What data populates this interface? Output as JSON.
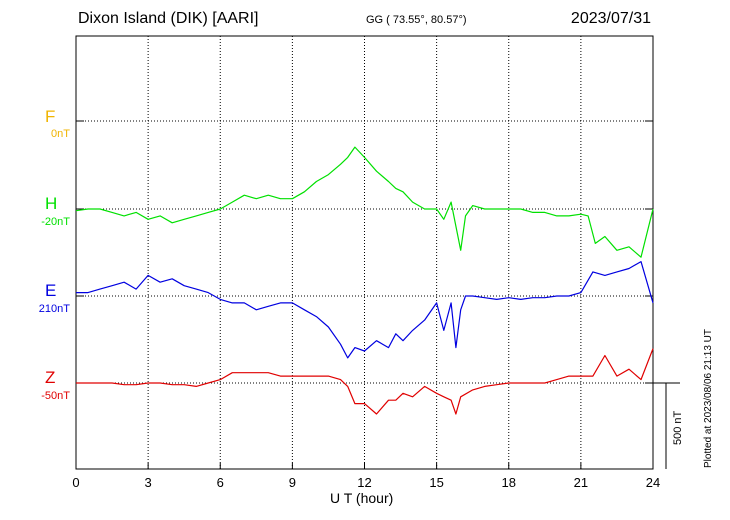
{
  "header": {
    "station": "Dixon Island (DIK)  [AARI]",
    "coords": "GG ( 73.55°,  80.57°)",
    "date": "2023/07/31"
  },
  "plotted_note": "Plotted at 2023/08/06 21:13 UT",
  "scale_label": "500 nT",
  "chart_data": {
    "type": "line",
    "xlabel": "U T (hour)",
    "x_ticks": [
      "0",
      "3",
      "6",
      "9",
      "12",
      "15",
      "18",
      "21",
      "24"
    ],
    "xlim": [
      0,
      24
    ],
    "grid": true,
    "units_per_grid_row": "nT",
    "series": [
      {
        "name": "F",
        "baseline": "0nT",
        "color": "#f0b400",
        "x": [],
        "y": []
      },
      {
        "name": "H",
        "baseline": "-20nT",
        "color": "#00e000",
        "x": [
          0,
          0.5,
          1,
          1.5,
          2,
          2.5,
          3,
          3.5,
          4,
          4.5,
          5,
          5.5,
          6,
          6.5,
          7,
          7.5,
          8,
          8.5,
          9,
          9.5,
          10,
          10.5,
          11,
          11.3,
          11.6,
          12,
          12.5,
          13,
          13.3,
          13.6,
          14,
          14.5,
          15,
          15.3,
          15.6,
          15.8,
          16,
          16.2,
          16.5,
          17,
          17.5,
          18,
          18.5,
          19,
          19.5,
          20,
          20.5,
          21,
          21.3,
          21.6,
          22,
          22.5,
          23,
          23.5,
          24
        ],
        "y": [
          -10,
          0,
          0,
          -20,
          -40,
          -20,
          -60,
          -40,
          -80,
          -60,
          -40,
          -20,
          0,
          40,
          80,
          60,
          80,
          60,
          60,
          100,
          160,
          200,
          260,
          300,
          360,
          300,
          220,
          160,
          120,
          100,
          40,
          0,
          0,
          -60,
          40,
          -100,
          -240,
          -40,
          20,
          0,
          0,
          0,
          0,
          -20,
          -20,
          -40,
          -40,
          -30,
          -40,
          -200,
          -160,
          -240,
          -220,
          -280,
          0
        ]
      },
      {
        "name": "E",
        "baseline": "210nT",
        "color": "#0000e0",
        "x": [
          0,
          0.5,
          1,
          1.5,
          2,
          2.5,
          3,
          3.5,
          4,
          4.5,
          5,
          5.5,
          6,
          6.5,
          7,
          7.5,
          8,
          8.5,
          9,
          9.5,
          10,
          10.5,
          11,
          11.3,
          11.6,
          12,
          12.5,
          13,
          13.3,
          13.6,
          14,
          14.5,
          15,
          15.3,
          15.6,
          15.8,
          16,
          16.2,
          16.5,
          17,
          17.5,
          18,
          18.5,
          19,
          19.5,
          20,
          20.5,
          21,
          21.5,
          22,
          22.5,
          23,
          23.5,
          24
        ],
        "y": [
          20,
          20,
          40,
          60,
          80,
          40,
          120,
          80,
          100,
          60,
          40,
          20,
          -20,
          -40,
          -40,
          -80,
          -60,
          -40,
          -40,
          -80,
          -120,
          -180,
          -280,
          -360,
          -300,
          -320,
          -260,
          -300,
          -220,
          -260,
          -200,
          -140,
          -40,
          -200,
          -40,
          -300,
          -80,
          0,
          0,
          -10,
          -20,
          -10,
          -20,
          -10,
          -10,
          0,
          0,
          20,
          140,
          120,
          140,
          160,
          200,
          -40
        ]
      },
      {
        "name": "Z",
        "baseline": "-50nT",
        "color": "#e00000",
        "x": [
          0,
          0.5,
          1,
          1.5,
          2,
          2.5,
          3,
          3.5,
          4,
          4.5,
          5,
          5.5,
          6,
          6.5,
          7,
          7.5,
          8,
          8.5,
          9,
          9.5,
          10,
          10.5,
          11,
          11.3,
          11.6,
          12,
          12.5,
          13,
          13.3,
          13.6,
          14,
          14.5,
          15,
          15.3,
          15.6,
          15.8,
          16,
          16.5,
          17,
          17.5,
          18,
          18.5,
          19,
          19.5,
          20,
          20.5,
          21,
          21.5,
          22,
          22.5,
          23,
          23.5,
          24
        ],
        "y": [
          0,
          0,
          0,
          0,
          -10,
          -10,
          0,
          0,
          -10,
          -10,
          -20,
          0,
          20,
          60,
          60,
          60,
          60,
          40,
          40,
          40,
          40,
          40,
          20,
          -20,
          -120,
          -120,
          -180,
          -100,
          -100,
          -60,
          -80,
          -20,
          -60,
          -80,
          -100,
          -180,
          -80,
          -40,
          -20,
          -10,
          0,
          0,
          0,
          0,
          20,
          40,
          40,
          40,
          160,
          40,
          80,
          20,
          200
        ]
      }
    ]
  }
}
